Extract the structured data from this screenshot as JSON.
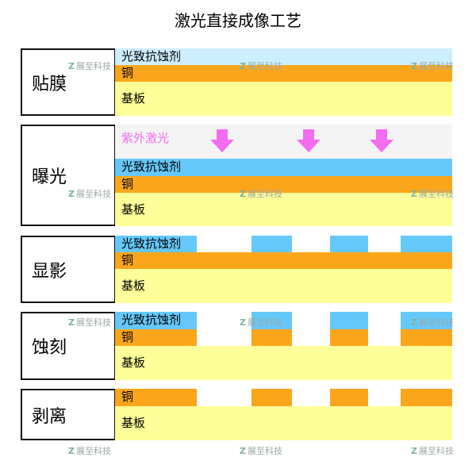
{
  "title": "激光直接成像工艺",
  "colors": {
    "resist_light": "#cdeefe",
    "resist": "#66c8fa",
    "copper": "#fba61a",
    "substrate": "#ffff99",
    "uv_zone": "#f4f4f4",
    "uv_arrow": "#f36cf0"
  },
  "layers": {
    "resist": "光致抗蚀剂",
    "copper": "铜",
    "substrate": "基板",
    "uv": "紫外激光"
  },
  "steps": [
    {
      "label": "贴膜"
    },
    {
      "label": "曝光"
    },
    {
      "label": "显影"
    },
    {
      "label": "蚀刻"
    },
    {
      "label": "剥离"
    }
  ],
  "watermark": {
    "logo": "Z",
    "text": "展至科技"
  }
}
